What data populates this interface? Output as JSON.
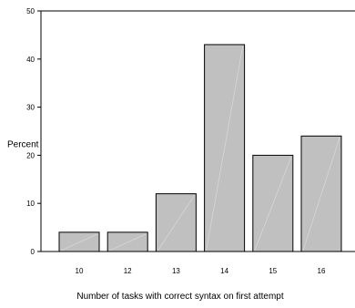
{
  "chart_data": {
    "type": "bar",
    "categories": [
      "10",
      "12",
      "13",
      "14",
      "15",
      "16"
    ],
    "values": [
      4,
      4,
      12,
      43,
      20,
      24
    ],
    "xlabel": "Number of tasks with correct syntax on first attempt",
    "ylabel": "Percent",
    "ylim": [
      0,
      50
    ],
    "yticks": [
      "0",
      "10",
      "20",
      "30",
      "40",
      "50"
    ],
    "grid": false,
    "bar_color": "#c0c0c0",
    "bar_edge_color": "#000000",
    "axis_color": "#000000",
    "background": "#ffffff"
  }
}
